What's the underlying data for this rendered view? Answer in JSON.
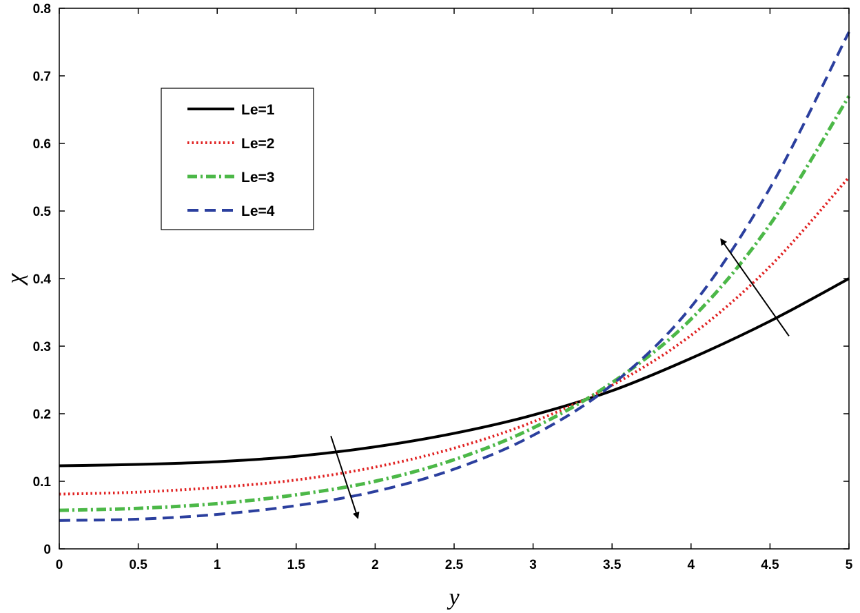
{
  "chart_data": {
    "type": "line",
    "title": "",
    "xlabel": "y",
    "ylabel": "χ",
    "xlim": [
      0,
      5
    ],
    "ylim": [
      0,
      0.8
    ],
    "xticks": [
      0,
      0.5,
      1,
      1.5,
      2,
      2.5,
      3,
      3.5,
      4,
      4.5,
      5
    ],
    "xtick_labels": [
      "0",
      "0.5",
      "1",
      "1.5",
      "2",
      "2.5",
      "3",
      "3.5",
      "4",
      "4.5",
      "5"
    ],
    "yticks": [
      0,
      0.1,
      0.2,
      0.3,
      0.4,
      0.5,
      0.6,
      0.7,
      0.8
    ],
    "ytick_labels": [
      "0",
      "0.1",
      "0.2",
      "0.3",
      "0.4",
      "0.5",
      "0.6",
      "0.7",
      "0.8"
    ],
    "grid": false,
    "legend_position": "top-left",
    "x": [
      0,
      0.5,
      1,
      1.5,
      2,
      2.5,
      3,
      3.5,
      4,
      4.5,
      5
    ],
    "series": [
      {
        "name": "Le=1",
        "color": "#000000",
        "dash": "solid",
        "values": [
          0.123,
          0.125,
          0.129,
          0.137,
          0.151,
          0.171,
          0.198,
          0.234,
          0.282,
          0.337,
          0.4
        ]
      },
      {
        "name": "Le=2",
        "color": "#e02020",
        "dash": "dotted",
        "values": [
          0.081,
          0.084,
          0.091,
          0.102,
          0.121,
          0.149,
          0.188,
          0.242,
          0.316,
          0.418,
          0.55
        ]
      },
      {
        "name": "Le=3",
        "color": "#4cb848",
        "dash": "dashdot",
        "values": [
          0.057,
          0.06,
          0.067,
          0.08,
          0.1,
          0.132,
          0.179,
          0.246,
          0.34,
          0.48,
          0.67
        ]
      },
      {
        "name": "Le=4",
        "color": "#2b3f9e",
        "dash": "dashed",
        "values": [
          0.042,
          0.044,
          0.051,
          0.064,
          0.085,
          0.118,
          0.168,
          0.243,
          0.358,
          0.534,
          0.765
        ]
      }
    ],
    "annotations": [
      {
        "type": "arrow",
        "from": [
          1.72,
          0.167
        ],
        "to": [
          1.89,
          0.046
        ]
      },
      {
        "type": "arrow",
        "from": [
          4.62,
          0.315
        ],
        "to": [
          4.19,
          0.458
        ]
      }
    ]
  }
}
